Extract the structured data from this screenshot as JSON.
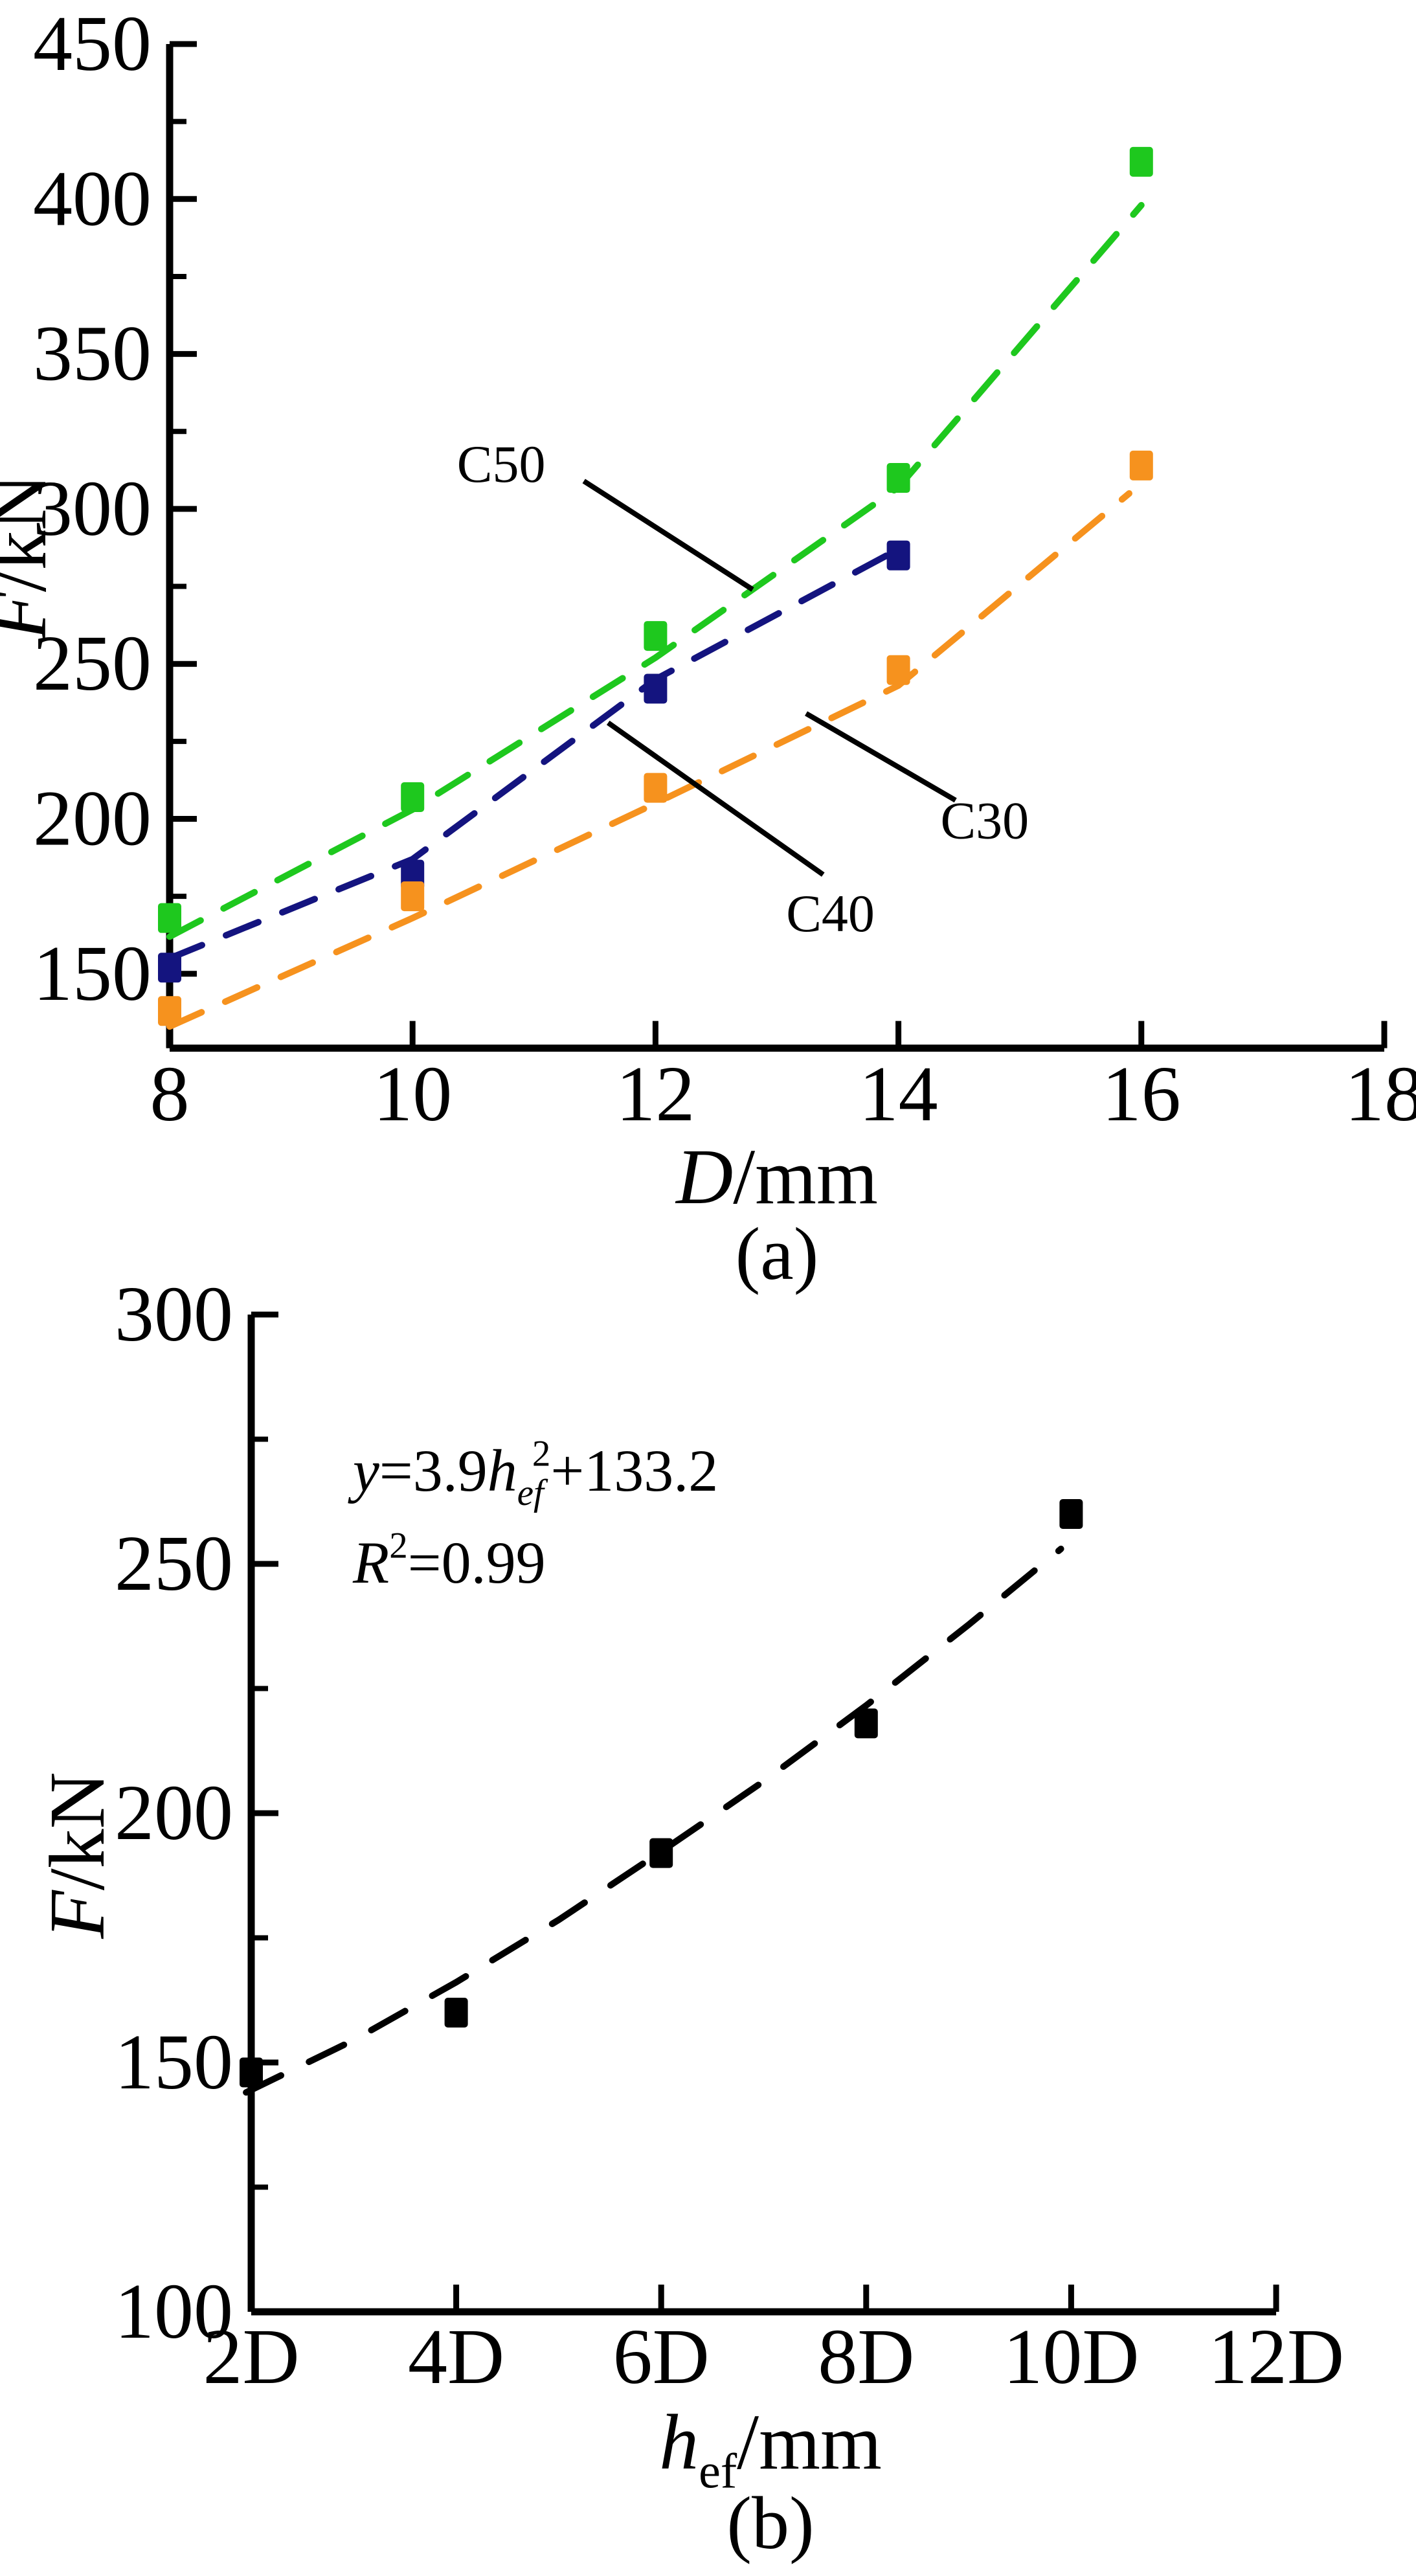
{
  "figure": {
    "background": "#ffffff",
    "description": "Two-panel scatter figure of anchor pull-out force",
    "black": "#000000"
  },
  "chart_data": [
    {
      "id": "a",
      "type": "scatter",
      "caption": "(a)",
      "xlabel_parts": [
        {
          "text": "D",
          "italic": true
        },
        {
          "text": "/mm"
        }
      ],
      "ylabel_parts": [
        {
          "text": "F",
          "italic": true
        },
        {
          "text": "/kN"
        }
      ],
      "xlim": [
        8,
        18
      ],
      "ylim": [
        126,
        450
      ],
      "grid": false,
      "legend_position": "inline-annotations",
      "xticks": [
        {
          "v": 8,
          "label": "8"
        },
        {
          "v": 10,
          "label": "10"
        },
        {
          "v": 12,
          "label": "12"
        },
        {
          "v": 14,
          "label": "14"
        },
        {
          "v": 16,
          "label": "16"
        },
        {
          "v": 18,
          "label": "18"
        }
      ],
      "yticks": [
        {
          "v": 150,
          "label": "150"
        },
        {
          "v": 200,
          "label": "200"
        },
        {
          "v": 250,
          "label": "250"
        },
        {
          "v": 300,
          "label": "300"
        },
        {
          "v": 350,
          "label": "350"
        },
        {
          "v": 400,
          "label": "400"
        },
        {
          "v": 450,
          "label": "450"
        }
      ],
      "yminor": [
        175,
        225,
        275,
        325,
        375,
        425
      ],
      "series": [
        {
          "name": "C50",
          "color": "#1ec81e",
          "marker": "square",
          "points": [
            [
              8,
              168
            ],
            [
              10,
              207
            ],
            [
              12,
              259
            ],
            [
              14,
              310
            ],
            [
              16,
              412
            ]
          ],
          "fit_line": [
            [
              8,
              162
            ],
            [
              10,
              203
            ],
            [
              12,
              252
            ],
            [
              14,
              307
            ],
            [
              16,
              398
            ]
          ]
        },
        {
          "name": "C40",
          "color": "#14147f",
          "marker": "square",
          "points": [
            [
              8,
              152
            ],
            [
              10,
              182
            ],
            [
              12,
              242
            ],
            [
              14,
              285
            ]
          ],
          "fit_line": [
            [
              8,
              155
            ],
            [
              10,
              187
            ],
            [
              12,
              245
            ],
            [
              14,
              287
            ]
          ]
        },
        {
          "name": "C30",
          "color": "#f6921e",
          "marker": "square",
          "points": [
            [
              8,
              138
            ],
            [
              10,
              175
            ],
            [
              12,
              210
            ],
            [
              14,
              248
            ],
            [
              16,
              314
            ]
          ],
          "fit_line": [
            [
              8,
              133
            ],
            [
              10,
              168
            ],
            [
              12,
              205
            ],
            [
              14,
              243
            ],
            [
              15.9,
              305
            ]
          ]
        }
      ],
      "annotations": [
        {
          "label": "C50",
          "text_at": [
            10.73,
            315
          ],
          "line": [
            [
              11.41,
              309
            ],
            [
              12.8,
              274
            ]
          ]
        },
        {
          "label": "C40",
          "text_at": [
            13.44,
            170
          ],
          "line": [
            [
              11.61,
              231
            ],
            [
              13.38,
              182
            ]
          ]
        },
        {
          "label": "C30",
          "text_at": [
            14.71,
            200
          ],
          "line": [
            [
              13.24,
              234
            ],
            [
              14.47,
              206
            ]
          ]
        }
      ]
    },
    {
      "id": "b",
      "type": "scatter",
      "caption": "(b)",
      "xlabel_parts": [
        {
          "text": "h",
          "italic": true
        },
        {
          "text": "ef",
          "sub": true
        },
        {
          "text": "/mm"
        }
      ],
      "ylabel_parts": [
        {
          "text": "F",
          "italic": true
        },
        {
          "text": "/kN"
        }
      ],
      "xlim": [
        2,
        12
      ],
      "ylim": [
        100,
        300
      ],
      "grid": false,
      "xticks": [
        {
          "v": 2,
          "label": "2D"
        },
        {
          "v": 4,
          "label": "4D"
        },
        {
          "v": 6,
          "label": "6D"
        },
        {
          "v": 8,
          "label": "8D"
        },
        {
          "v": 10,
          "label": "10D"
        },
        {
          "v": 12,
          "label": "12D"
        }
      ],
      "yticks": [
        {
          "v": 100,
          "label": "100"
        },
        {
          "v": 150,
          "label": "150"
        },
        {
          "v": 200,
          "label": "200"
        },
        {
          "v": 250,
          "label": "250"
        },
        {
          "v": 300,
          "label": "300"
        }
      ],
      "yminor": [
        125,
        175,
        225,
        275
      ],
      "series": [
        {
          "name": "F",
          "color": "#000000",
          "marker": "square",
          "points": [
            [
              2,
              148
            ],
            [
              4,
              160
            ],
            [
              6,
              192
            ],
            [
              8,
              218
            ],
            [
              10,
              260
            ]
          ],
          "fit_line": [
            [
              1.95,
              144
            ],
            [
              3,
              154.5
            ],
            [
              4,
              166.1
            ],
            [
              5,
              178.6
            ],
            [
              6,
              192.3
            ],
            [
              7,
              206.4
            ],
            [
              8,
              221.6
            ],
            [
              9,
              237.8
            ],
            [
              9.9,
              253
            ]
          ]
        }
      ],
      "equation_lines": [
        [
          {
            "text": "y",
            "italic": true
          },
          {
            "text": "=3.9"
          },
          {
            "text": "h",
            "italic": true
          },
          {
            "text": "ef",
            "italic": true,
            "sub": true
          },
          {
            "text": "2",
            "sup": true
          },
          {
            "text": "+133.2"
          }
        ],
        [
          {
            "text": "R",
            "italic": true
          },
          {
            "text": "2",
            "sup": true
          },
          {
            "text": "=0.99"
          }
        ]
      ]
    }
  ]
}
